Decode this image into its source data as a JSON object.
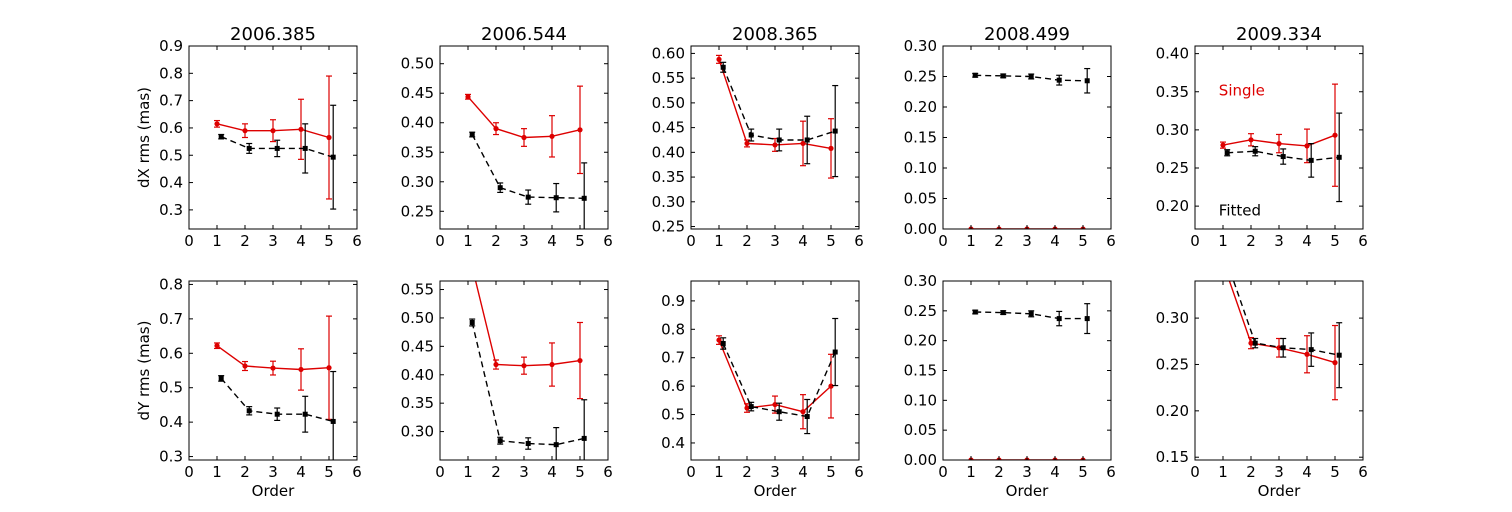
{
  "chart_data": [
    {
      "type": "line",
      "title": "2006.385",
      "xlabel": "",
      "ylabel": "dX rms (mas)",
      "xlim": [
        0,
        6
      ],
      "ylim": [
        0.23,
        0.9
      ],
      "yticks": [
        0.3,
        0.4,
        0.5,
        0.6,
        0.7,
        0.8,
        0.9
      ],
      "yticklabels": [
        "0.3",
        "0.4",
        "0.5",
        "0.6",
        "0.7",
        "0.8",
        "0.9"
      ],
      "xticks": [
        0,
        1,
        2,
        3,
        4,
        5,
        6
      ],
      "xticklabels": [
        "0",
        "1",
        "2",
        "3",
        "4",
        "5",
        "6"
      ],
      "series": [
        {
          "name": "Single",
          "color": "#dd0000",
          "style": "solid",
          "marker": "circle",
          "x": [
            1,
            2,
            3,
            4,
            5
          ],
          "y": [
            0.615,
            0.59,
            0.59,
            0.595,
            0.565
          ],
          "err": [
            0.012,
            0.025,
            0.04,
            0.11,
            0.225
          ]
        },
        {
          "name": "Fitted",
          "color": "#000000",
          "style": "dashed",
          "marker": "square",
          "x": [
            1.15,
            2.15,
            3.15,
            4.15,
            5.15
          ],
          "y": [
            0.568,
            0.525,
            0.525,
            0.525,
            0.493
          ],
          "err": [
            0.008,
            0.018,
            0.03,
            0.09,
            0.19
          ]
        }
      ]
    },
    {
      "type": "line",
      "title": "2006.544",
      "xlabel": "",
      "ylabel": "",
      "xlim": [
        0,
        6
      ],
      "ylim": [
        0.22,
        0.53
      ],
      "yticks": [
        0.25,
        0.3,
        0.35,
        0.4,
        0.45,
        0.5
      ],
      "yticklabels": [
        "0.25",
        "0.30",
        "0.35",
        "0.40",
        "0.45",
        "0.50"
      ],
      "xticks": [
        0,
        1,
        2,
        3,
        4,
        5,
        6
      ],
      "xticklabels": [
        "0",
        "1",
        "2",
        "3",
        "4",
        "5",
        "6"
      ],
      "series": [
        {
          "name": "Single",
          "color": "#dd0000",
          "style": "solid",
          "marker": "circle",
          "x": [
            1,
            2,
            3,
            4,
            5
          ],
          "y": [
            0.444,
            0.39,
            0.375,
            0.377,
            0.388
          ],
          "err": [
            0.004,
            0.01,
            0.015,
            0.035,
            0.074
          ]
        },
        {
          "name": "Fitted",
          "color": "#000000",
          "style": "dashed",
          "marker": "square",
          "x": [
            1.15,
            2.15,
            3.15,
            4.15,
            5.15
          ],
          "y": [
            0.38,
            0.29,
            0.274,
            0.273,
            0.272
          ],
          "err": [
            0.004,
            0.008,
            0.012,
            0.024,
            0.06
          ]
        }
      ]
    },
    {
      "type": "line",
      "title": "2008.365",
      "xlabel": "",
      "ylabel": "",
      "xlim": [
        0,
        6
      ],
      "ylim": [
        0.245,
        0.615
      ],
      "yticks": [
        0.25,
        0.3,
        0.35,
        0.4,
        0.45,
        0.5,
        0.55,
        0.6
      ],
      "yticklabels": [
        "0.25",
        "0.30",
        "0.35",
        "0.40",
        "0.45",
        "0.50",
        "0.55",
        "0.60"
      ],
      "xticks": [
        0,
        1,
        2,
        3,
        4,
        5,
        6
      ],
      "xticklabels": [
        "0",
        "1",
        "2",
        "3",
        "4",
        "5",
        "6"
      ],
      "series": [
        {
          "name": "Single",
          "color": "#dd0000",
          "style": "solid",
          "marker": "circle",
          "x": [
            1,
            2,
            3,
            4,
            5
          ],
          "y": [
            0.588,
            0.418,
            0.415,
            0.418,
            0.408
          ],
          "err": [
            0.008,
            0.007,
            0.013,
            0.045,
            0.06
          ]
        },
        {
          "name": "Fitted",
          "color": "#000000",
          "style": "dashed",
          "marker": "square",
          "x": [
            1.15,
            2.15,
            3.15,
            4.15,
            5.15
          ],
          "y": [
            0.572,
            0.435,
            0.425,
            0.425,
            0.443
          ],
          "err": [
            0.01,
            0.012,
            0.022,
            0.048,
            0.092
          ]
        }
      ]
    },
    {
      "type": "line",
      "title": "2008.499",
      "xlabel": "",
      "ylabel": "",
      "xlim": [
        0,
        6
      ],
      "ylim": [
        0,
        0.3
      ],
      "yticks": [
        0,
        0.05,
        0.1,
        0.15,
        0.2,
        0.25,
        0.3
      ],
      "yticklabels": [
        "0.00",
        "0.05",
        "0.10",
        "0.15",
        "0.20",
        "0.25",
        "0.30"
      ],
      "xticks": [
        0,
        1,
        2,
        3,
        4,
        5,
        6
      ],
      "xticklabels": [
        "0",
        "1",
        "2",
        "3",
        "4",
        "5",
        "6"
      ],
      "series": [
        {
          "name": "Single",
          "color": "#dd0000",
          "style": "solid",
          "marker": "circle",
          "x": [
            1,
            2,
            3,
            4,
            5
          ],
          "y": [
            0,
            0,
            0,
            0,
            0
          ],
          "err": [
            0,
            0,
            0,
            0,
            0
          ]
        },
        {
          "name": "Fitted",
          "color": "#000000",
          "style": "dashed",
          "marker": "square",
          "x": [
            1.15,
            2.15,
            3.15,
            4.15,
            5.15
          ],
          "y": [
            0.252,
            0.251,
            0.25,
            0.244,
            0.243
          ],
          "err": [
            0.003,
            0.003,
            0.004,
            0.008,
            0.02
          ]
        }
      ]
    },
    {
      "type": "line",
      "title": "2009.334",
      "xlabel": "",
      "ylabel": "",
      "xlim": [
        0,
        6
      ],
      "ylim": [
        0.17,
        0.41
      ],
      "yticks": [
        0.2,
        0.25,
        0.3,
        0.35,
        0.4
      ],
      "yticklabels": [
        "0.20",
        "0.25",
        "0.30",
        "0.35",
        "0.40"
      ],
      "xticks": [
        0,
        1,
        2,
        3,
        4,
        5,
        6
      ],
      "xticklabels": [
        "0",
        "1",
        "2",
        "3",
        "4",
        "5",
        "6"
      ],
      "annotations": [
        {
          "text": "Single",
          "color": "#dd0000",
          "x": 0.85,
          "y": 0.345
        },
        {
          "text": "Fitted",
          "color": "#000000",
          "x": 0.85,
          "y": 0.188
        }
      ],
      "series": [
        {
          "name": "Single",
          "color": "#dd0000",
          "style": "solid",
          "marker": "circle",
          "x": [
            1,
            2,
            3,
            4,
            5
          ],
          "y": [
            0.28,
            0.287,
            0.282,
            0.279,
            0.293
          ],
          "err": [
            0.004,
            0.008,
            0.012,
            0.022,
            0.067
          ]
        },
        {
          "name": "Fitted",
          "color": "#000000",
          "style": "dashed",
          "marker": "square",
          "x": [
            1.15,
            2.15,
            3.15,
            4.15,
            5.15
          ],
          "y": [
            0.27,
            0.272,
            0.265,
            0.26,
            0.264
          ],
          "err": [
            0.004,
            0.006,
            0.01,
            0.022,
            0.058
          ]
        }
      ]
    },
    {
      "type": "line",
      "title": "",
      "xlabel": "Order",
      "ylabel": "dY rms (mas)",
      "xlim": [
        0,
        6
      ],
      "ylim": [
        0.29,
        0.81
      ],
      "yticks": [
        0.3,
        0.4,
        0.5,
        0.6,
        0.7,
        0.8
      ],
      "yticklabels": [
        "0.3",
        "0.4",
        "0.5",
        "0.6",
        "0.7",
        "0.8"
      ],
      "xticks": [
        0,
        1,
        2,
        3,
        4,
        5,
        6
      ],
      "xticklabels": [
        "0",
        "1",
        "2",
        "3",
        "4",
        "5",
        "6"
      ],
      "series": [
        {
          "name": "Single",
          "color": "#dd0000",
          "style": "solid",
          "marker": "circle",
          "x": [
            1,
            2,
            3,
            4,
            5
          ],
          "y": [
            0.622,
            0.563,
            0.557,
            0.553,
            0.558
          ],
          "err": [
            0.008,
            0.013,
            0.02,
            0.06,
            0.15
          ]
        },
        {
          "name": "Fitted",
          "color": "#000000",
          "style": "dashed",
          "marker": "square",
          "x": [
            1.15,
            2.15,
            3.15,
            4.15,
            5.15
          ],
          "y": [
            0.527,
            0.433,
            0.423,
            0.423,
            0.402
          ],
          "err": [
            0.008,
            0.012,
            0.018,
            0.052,
            0.145
          ]
        }
      ]
    },
    {
      "type": "line",
      "title": "",
      "xlabel": "",
      "ylabel": "",
      "xlim": [
        0,
        6
      ],
      "ylim": [
        0.25,
        0.565
      ],
      "yticks": [
        0.3,
        0.35,
        0.4,
        0.45,
        0.5,
        0.55
      ],
      "yticklabels": [
        "0.30",
        "0.35",
        "0.40",
        "0.45",
        "0.50",
        "0.55"
      ],
      "xticks": [
        0,
        1,
        2,
        3,
        4,
        5,
        6
      ],
      "xticklabels": [
        "0",
        "1",
        "2",
        "3",
        "4",
        "5",
        "6"
      ],
      "series": [
        {
          "name": "Single",
          "color": "#dd0000",
          "style": "solid",
          "marker": "circle",
          "x": [
            1,
            2,
            3,
            4,
            5
          ],
          "y": [
            0.62,
            0.418,
            0.416,
            0.418,
            0.425
          ],
          "err": [
            0.005,
            0.008,
            0.015,
            0.038,
            0.067
          ]
        },
        {
          "name": "Fitted",
          "color": "#000000",
          "style": "dashed",
          "marker": "square",
          "x": [
            1.15,
            2.15,
            3.15,
            4.15,
            5.15
          ],
          "y": [
            0.492,
            0.284,
            0.279,
            0.277,
            0.288
          ],
          "err": [
            0.006,
            0.006,
            0.01,
            0.03,
            0.068
          ]
        }
      ]
    },
    {
      "type": "line",
      "title": "",
      "xlabel": "Order",
      "ylabel": "",
      "xlim": [
        0,
        6
      ],
      "ylim": [
        0.34,
        0.97
      ],
      "yticks": [
        0.4,
        0.5,
        0.6,
        0.7,
        0.8,
        0.9
      ],
      "yticklabels": [
        "0.4",
        "0.5",
        "0.6",
        "0.7",
        "0.8",
        "0.9"
      ],
      "xticks": [
        0,
        1,
        2,
        3,
        4,
        5,
        6
      ],
      "xticklabels": [
        "0",
        "1",
        "2",
        "3",
        "4",
        "5",
        "6"
      ],
      "series": [
        {
          "name": "Single",
          "color": "#dd0000",
          "style": "solid",
          "marker": "circle",
          "x": [
            1,
            2,
            3,
            4,
            5
          ],
          "y": [
            0.762,
            0.523,
            0.535,
            0.51,
            0.6
          ],
          "err": [
            0.015,
            0.015,
            0.03,
            0.06,
            0.112
          ]
        },
        {
          "name": "Fitted",
          "color": "#000000",
          "style": "dashed",
          "marker": "square",
          "x": [
            1.15,
            2.15,
            3.15,
            4.15,
            5.15
          ],
          "y": [
            0.75,
            0.528,
            0.51,
            0.493,
            0.72
          ],
          "err": [
            0.02,
            0.015,
            0.03,
            0.06,
            0.118
          ]
        }
      ]
    },
    {
      "type": "line",
      "title": "",
      "xlabel": "Order",
      "ylabel": "",
      "xlim": [
        0,
        6
      ],
      "ylim": [
        0,
        0.3
      ],
      "yticks": [
        0,
        0.05,
        0.1,
        0.15,
        0.2,
        0.25,
        0.3
      ],
      "yticklabels": [
        "0.00",
        "0.05",
        "0.10",
        "0.15",
        "0.20",
        "0.25",
        "0.30"
      ],
      "xticks": [
        0,
        1,
        2,
        3,
        4,
        5,
        6
      ],
      "xticklabels": [
        "0",
        "1",
        "2",
        "3",
        "4",
        "5",
        "6"
      ],
      "series": [
        {
          "name": "Single",
          "color": "#dd0000",
          "style": "solid",
          "marker": "circle",
          "x": [
            1,
            2,
            3,
            4,
            5
          ],
          "y": [
            0,
            0,
            0,
            0,
            0
          ],
          "err": [
            0,
            0,
            0,
            0,
            0
          ]
        },
        {
          "name": "Fitted",
          "color": "#000000",
          "style": "dashed",
          "marker": "square",
          "x": [
            1.15,
            2.15,
            3.15,
            4.15,
            5.15
          ],
          "y": [
            0.248,
            0.247,
            0.245,
            0.237,
            0.237
          ],
          "err": [
            0.003,
            0.003,
            0.005,
            0.012,
            0.025
          ]
        }
      ]
    },
    {
      "type": "line",
      "title": "",
      "xlabel": "Order",
      "ylabel": "",
      "xlim": [
        0,
        6
      ],
      "ylim": [
        0.147,
        0.34
      ],
      "yticks": [
        0.15,
        0.2,
        0.25,
        0.3
      ],
      "yticklabels": [
        "0.15",
        "0.20",
        "0.25",
        "0.30"
      ],
      "xticks": [
        0,
        1,
        2,
        3,
        4,
        5,
        6
      ],
      "xticklabels": [
        "0",
        "1",
        "2",
        "3",
        "4",
        "5",
        "6"
      ],
      "series": [
        {
          "name": "Single",
          "color": "#dd0000",
          "style": "solid",
          "marker": "circle",
          "x": [
            1,
            2,
            3,
            4,
            5
          ],
          "y": [
            0.36,
            0.273,
            0.268,
            0.261,
            0.252
          ],
          "err": [
            0.003,
            0.006,
            0.01,
            0.02,
            0.04
          ]
        },
        {
          "name": "Fitted",
          "color": "#000000",
          "style": "dashed",
          "marker": "square",
          "x": [
            1.15,
            2.15,
            3.15,
            4.15,
            5.15
          ],
          "y": [
            0.36,
            0.273,
            0.268,
            0.266,
            0.26
          ],
          "err": [
            0.003,
            0.005,
            0.01,
            0.018,
            0.035
          ]
        }
      ]
    }
  ]
}
